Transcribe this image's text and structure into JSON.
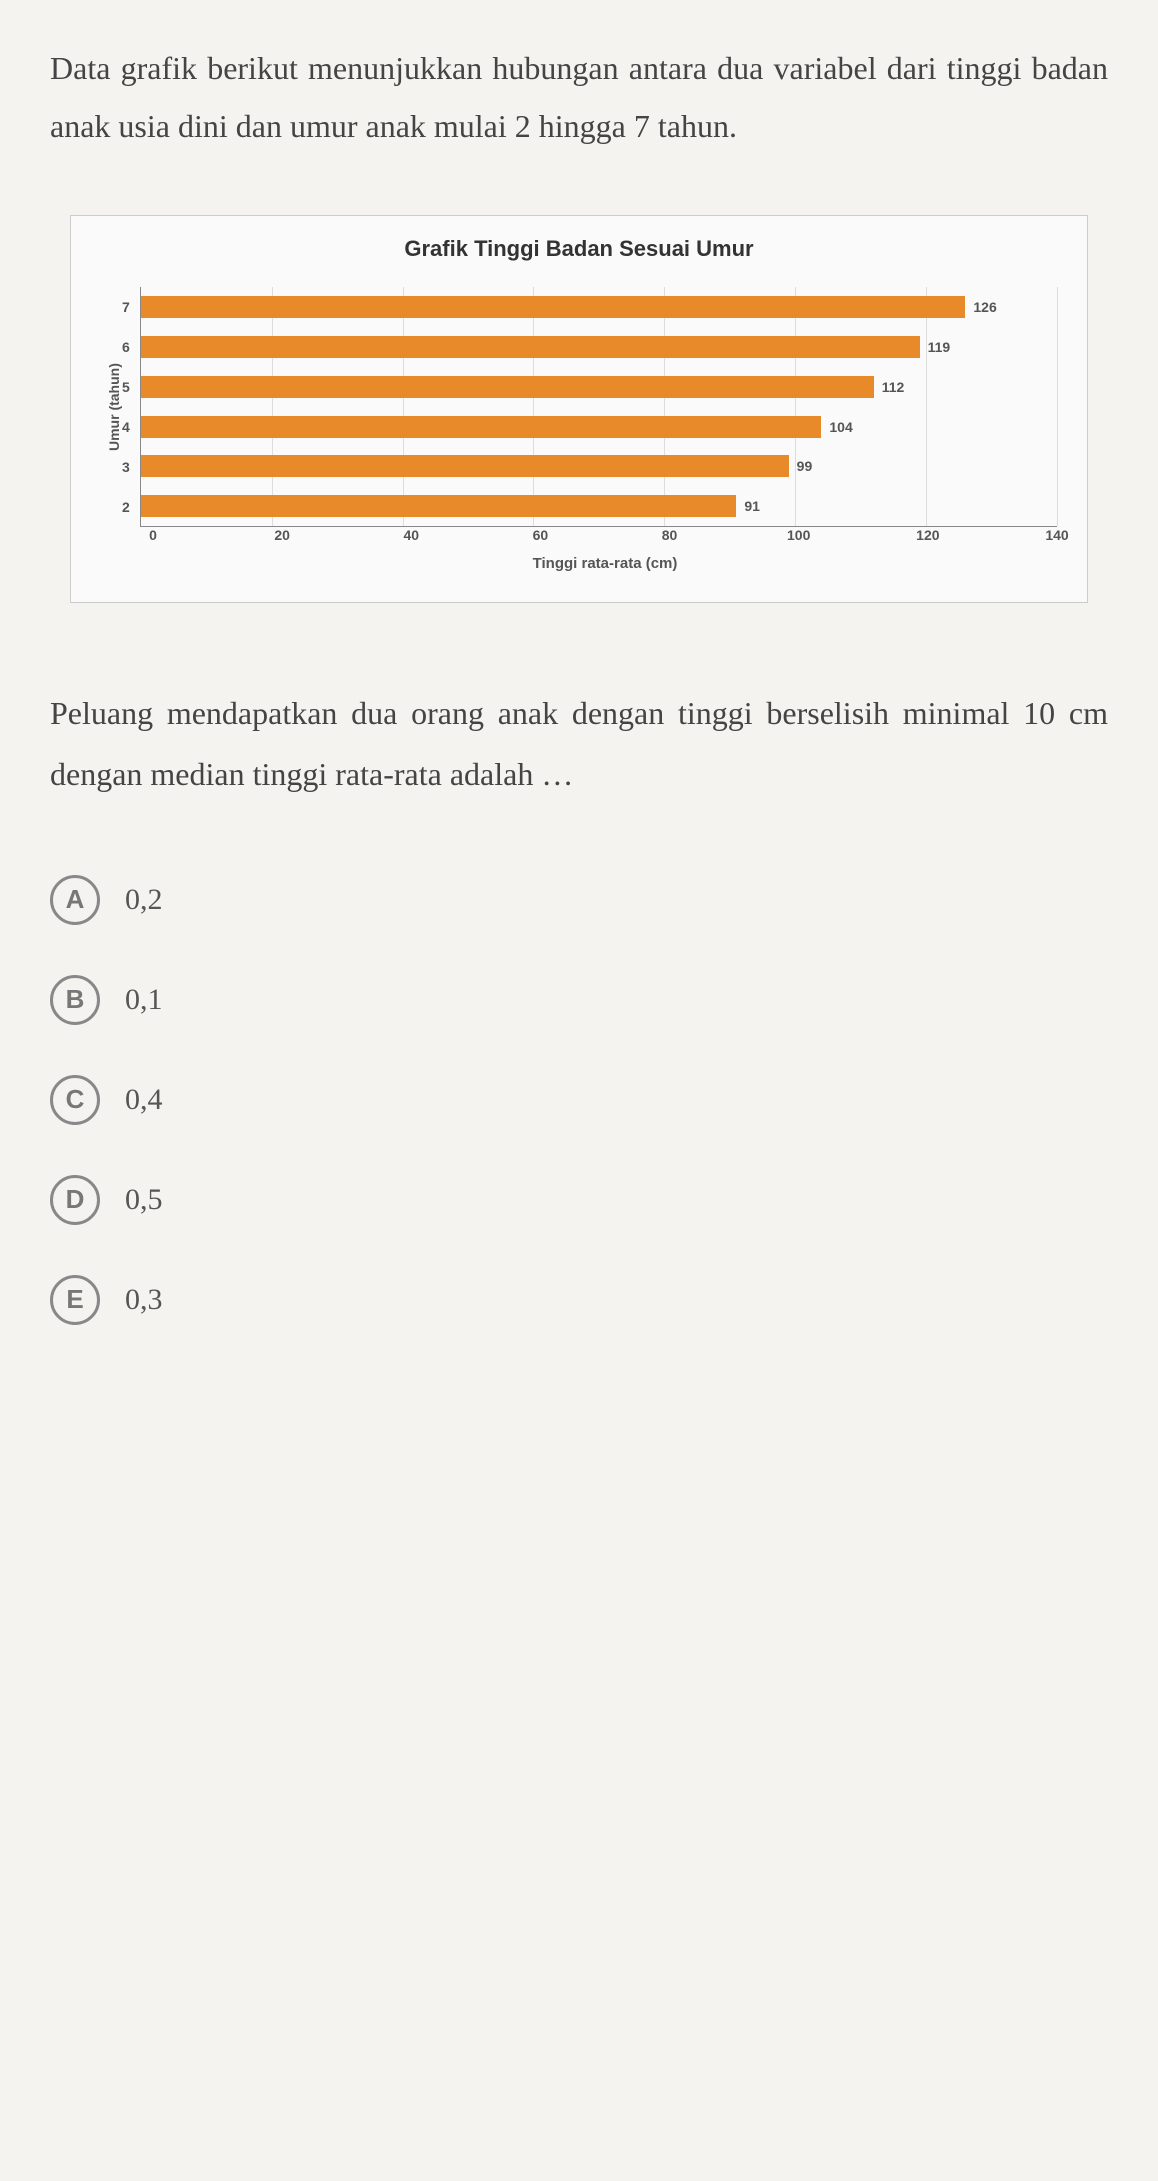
{
  "question": {
    "intro": "Data grafik berikut menunjukkan hubungan antara dua variabel dari tinggi badan anak usia dini dan umur anak mulai 2 hingga 7 tahun.",
    "prompt": "Peluang mendapatkan dua orang anak dengan tinggi berselisih minimal 10 cm dengan median tinggi rata-rata adalah …"
  },
  "chart": {
    "type": "bar-horizontal",
    "title": "Grafik Tinggi Badan Sesuai Umur",
    "y_label": "Umur (tahun)",
    "x_label": "Tinggi rata-rata (cm)",
    "y_categories": [
      "7",
      "6",
      "5",
      "4",
      "3",
      "2"
    ],
    "values": [
      126,
      119,
      112,
      104,
      99,
      91
    ],
    "bar_color": "#e88a2a",
    "x_ticks": [
      0,
      20,
      40,
      60,
      80,
      100,
      120,
      140
    ],
    "x_max": 140,
    "label_fontsize": 14,
    "title_fontsize": 22,
    "grid_color": "#dddddd",
    "background_color": "#fafafa"
  },
  "options": [
    {
      "letter": "A",
      "value": "0,2"
    },
    {
      "letter": "B",
      "value": "0,1"
    },
    {
      "letter": "C",
      "value": "0,4"
    },
    {
      "letter": "D",
      "value": "0,5"
    },
    {
      "letter": "E",
      "value": "0,3"
    }
  ]
}
